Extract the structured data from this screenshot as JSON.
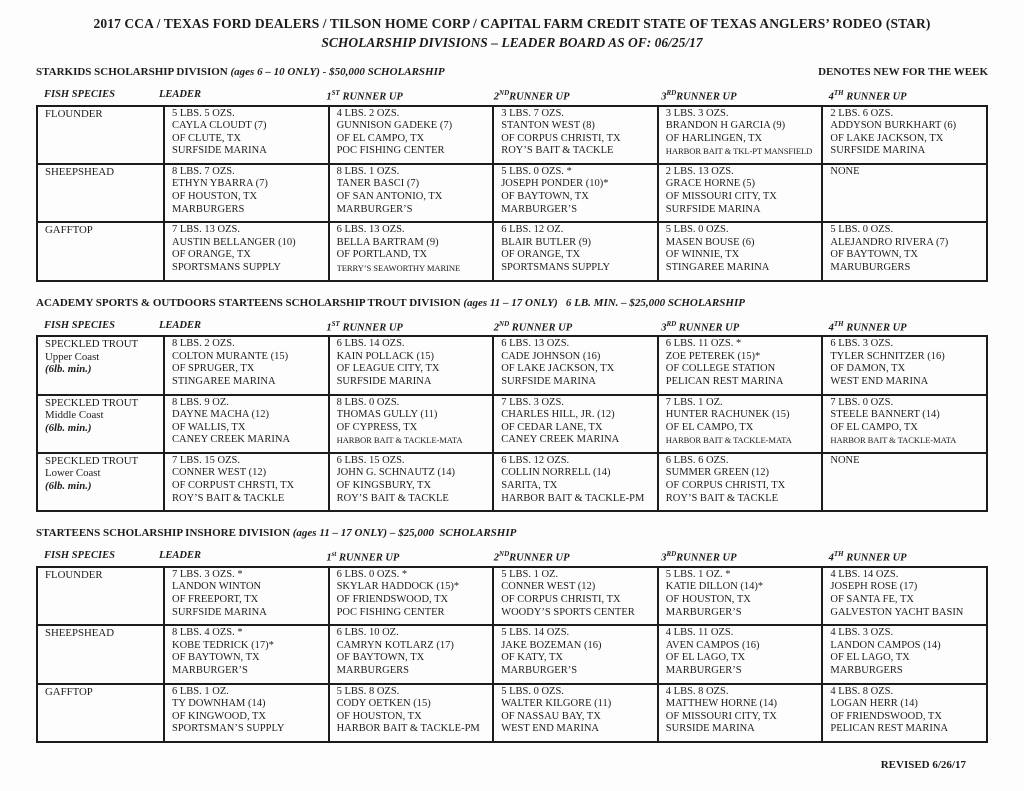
{
  "page": {
    "title_line1": "2017 CCA / TEXAS FORD DEALERS / TILSON HOME CORP / CAPITAL FARM CREDIT STATE OF TEXAS ANGLERS’ RODEO (STAR)",
    "title_line2": "SCHOLARSHIP DIVISIONS – LEADER BOARD AS OF: 06/25/17",
    "footer": "REVISED 6/26/17"
  },
  "sections": [
    {
      "heading": "STARKIDS SCHOLARSHIP DIVISION",
      "heading_note": "(ages 6 – 10 ONLY) - $50,000 SCHOLARSHIP",
      "right_note": "DENOTES NEW FOR THE WEEK",
      "columns": [
        "FISH SPECIES",
        "LEADER",
        [
          "1",
          "ST",
          " RUNNER UP"
        ],
        [
          "2",
          "ND",
          "RUNNER UP"
        ],
        [
          "3",
          "RD",
          "RUNNER UP"
        ],
        [
          "4",
          "TH",
          " RUNNER UP"
        ]
      ],
      "rows": [
        {
          "species": [
            "FLOUNDER"
          ],
          "cells": [
            [
              "5 LBS. 5 OZS.",
              "CAYLA CLOUDT (7)",
              "OF CLUTE, TX",
              "SURFSIDE MARINA"
            ],
            [
              "4 LBS. 2 OZS.",
              "GUNNISON GADEKE (7)",
              "OF EL CAMPO, TX",
              "POC FISHING CENTER"
            ],
            [
              "3 LBS. 7 OZS.",
              "STANTON WEST (8)",
              "OF CORPUS CHRISTI, TX",
              "ROY’S BAIT & TACKLE"
            ],
            [
              "3 LBS. 3 OZS.",
              "BRANDON H GARCIA (9)",
              "OF HARLINGEN, TX",
              "HARBOR BAIT & TKL-PT MANSFIELD"
            ],
            [
              "2 LBS. 6 OZS.",
              "ADDYSON BURKHART (6)",
              "OF LAKE JACKSON, TX",
              "SURFSIDE MARINA"
            ]
          ]
        },
        {
          "species": [
            "SHEEPSHEAD"
          ],
          "cells": [
            [
              "8 LBS. 7 OZS.",
              "ETHYN YBARRA (7)",
              "OF HOUSTON, TX",
              "MARBURGERS"
            ],
            [
              "8 LBS. 1 OZS.",
              "TANER BASCI (7)",
              "OF SAN ANTONIO, TX",
              "MARBURGER’S"
            ],
            [
              "5 LBS. 0 OZS. *",
              "JOSEPH PONDER (10)*",
              "OF BAYTOWN, TX",
              "MARBURGER’S"
            ],
            [
              "2 LBS. 13 OZS.",
              "GRACE HORNE (5)",
              "OF MISSOURI CITY, TX",
              "SURFSIDE MARINA"
            ],
            [
              "NONE"
            ]
          ]
        },
        {
          "species": [
            "GAFFTOP"
          ],
          "cells": [
            [
              "7 LBS. 13 OZS.",
              "AUSTIN BELLANGER (10)",
              "OF ORANGE, TX",
              "SPORTSMANS SUPPLY"
            ],
            [
              "6 LBS. 13 OZS.",
              "BELLA BARTRAM (9)",
              "OF PORTLAND, TX",
              "TERRY’S SEAWORTHY MARINE"
            ],
            [
              "6 LBS. 12 OZ.",
              "BLAIR BUTLER (9)",
              "OF ORANGE, TX",
              "SPORTSMANS SUPPLY"
            ],
            [
              "5 LBS. 0 OZS.",
              "MASEN BOUSE (6)",
              "OF WINNIE, TX",
              "STINGAREE MARINA"
            ],
            [
              "5 LBS. 0 OZS.",
              "ALEJANDRO RIVERA (7)",
              "OF BAYTOWN, TX",
              "MARUBURGERS"
            ]
          ]
        }
      ]
    },
    {
      "heading": "ACADEMY SPORTS & OUTDOORS STARTEENS SCHOLARSHIP TROUT DIVISION",
      "heading_note": "(ages 11 – 17 ONLY)   6 LB. MIN. – $25,000 SCHOLARSHIP",
      "right_note": "",
      "columns": [
        "FISH SPECIES",
        "LEADER",
        [
          "1",
          "ST",
          " RUNNER UP"
        ],
        [
          "2",
          "ND",
          " RUNNER UP"
        ],
        [
          "3",
          "RD",
          " RUNNER UP"
        ],
        [
          "4",
          "TH",
          " RUNNER UP"
        ]
      ],
      "rows": [
        {
          "species": [
            "SPECKLED TROUT",
            "Upper Coast",
            "(6lb. min.)"
          ],
          "cells": [
            [
              "8 LBS. 2 OZS.",
              "COLTON MURANTE (15)",
              "OF SPRUGER, TX",
              "STINGAREE MARINA"
            ],
            [
              "6 LBS. 14 OZS.",
              "KAIN POLLACK (15)",
              "OF LEAGUE CITY, TX",
              "SURFSIDE MARINA"
            ],
            [
              "6 LBS. 13 OZS.",
              "CADE JOHNSON (16)",
              "OF LAKE JACKSON, TX",
              "SURFSIDE MARINA"
            ],
            [
              "6 LBS. 11 OZS. *",
              "ZOE PETEREK (15)*",
              "OF COLLEGE STATION",
              "PELICAN REST MARINA"
            ],
            [
              "6 LBS. 3 OZS.",
              "TYLER SCHNITZER (16)",
              "OF DAMON, TX",
              "WEST END MARINA"
            ]
          ]
        },
        {
          "species": [
            "SPECKLED TROUT",
            "Middle Coast",
            "(6lb. min.)"
          ],
          "cells": [
            [
              "8 LBS. 9 OZ.",
              "DAYNE MACHA (12)",
              "OF WALLIS, TX",
              "CANEY CREEK MARINA"
            ],
            [
              "8 LBS. 0 OZS.",
              "THOMAS GULLY (11)",
              "OF CYPRESS, TX",
              "HARBOR BAIT & TACKLE-MATA"
            ],
            [
              "7 LBS. 3 OZS.",
              "CHARLES HILL, JR. (12)",
              "OF CEDAR LANE, TX",
              "CANEY CREEK MARINA"
            ],
            [
              "7 LBS. 1 OZ.",
              "HUNTER RACHUNEK (15)",
              "OF EL CAMPO, TX",
              "HARBOR BAIT & TACKLE-MATA"
            ],
            [
              "7 LBS. 0 OZS.",
              "STEELE BANNERT (14)",
              "OF EL CAMPO, TX",
              "HARBOR BAIT & TACKLE-MATA"
            ]
          ]
        },
        {
          "species": [
            "SPECKLED TROUT",
            "Lower Coast",
            "(6lb. min.)"
          ],
          "cells": [
            [
              "7 LBS. 15 OZS.",
              "CONNER WEST (12)",
              "OF CORPUST CHRSTI, TX",
              "ROY’S BAIT & TACKLE"
            ],
            [
              "6 LBS. 15 OZS.",
              "JOHN G. SCHNAUTZ (14)",
              "OF KINGSBURY, TX",
              "ROY’S BAIT & TACKLE"
            ],
            [
              "6 LBS. 12 OZS.",
              "COLLIN NORRELL (14)",
              "SARITA, TX",
              "HARBOR BAIT & TACKLE-PM"
            ],
            [
              "6 LBS. 6 OZS.",
              "SUMMER GREEN (12)",
              "OF CORPUS CHRISTI, TX",
              "ROY’S BAIT & TACKLE"
            ],
            [
              "NONE"
            ]
          ]
        }
      ]
    },
    {
      "heading": "STARTEENS SCHOLARSHIP INSHORE DIVISION",
      "heading_note": "(ages 11 – 17 ONLY) – $25,000  SCHOLARSHIP",
      "right_note": "",
      "columns": [
        "FISH SPECIES",
        "LEADER",
        [
          "1",
          "st",
          " RUNNER UP"
        ],
        [
          "2",
          "ND",
          "RUNNER UP"
        ],
        [
          "3",
          "RD",
          "RUNNER UP"
        ],
        [
          "4",
          "TH",
          " RUNNER UP"
        ]
      ],
      "rows": [
        {
          "species": [
            "FLOUNDER"
          ],
          "cells": [
            [
              "7 LBS. 3 OZS. *",
              "LANDON WINTON",
              "OF FREEPORT, TX",
              "SURFSIDE MARINA"
            ],
            [
              "6 LBS. 0 OZS. *",
              "SKYLAR HADDOCK (15)*",
              "OF FRIENDSWOOD, TX",
              "POC FISHING CENTER"
            ],
            [
              "5 LBS. 1 OZ.",
              "CONNER WEST (12)",
              "OF CORPUS CHRISTI, TX",
              "WOODY’S SPORTS CENTER"
            ],
            [
              "5 LBS. 1 OZ. *",
              "KATIE DILLON (14)*",
              "OF HOUSTON, TX",
              "MARBURGER’S"
            ],
            [
              "4 LBS. 14 OZS.",
              "JOSEPH ROSE (17)",
              "OF SANTA FE, TX",
              "GALVESTON YACHT BASIN"
            ]
          ]
        },
        {
          "species": [
            "SHEEPSHEAD"
          ],
          "cells": [
            [
              "8 LBS. 4 OZS. *",
              "KOBE TEDRICK (17)*",
              "OF BAYTOWN, TX",
              "MARBURGER’S"
            ],
            [
              "6 LBS. 10 OZ.",
              "CAMRYN KOTLARZ (17)",
              "OF BAYTOWN, TX",
              "MARBURGERS"
            ],
            [
              "5 LBS. 14 OZS.",
              "JAKE BOZEMAN (16)",
              "OF KATY, TX",
              "MARBURGER’S"
            ],
            [
              "4 LBS. 11 OZS.",
              "AVEN CAMPOS (16)",
              "OF EL LAGO, TX",
              "MARBURGER’S"
            ],
            [
              "4 LBS. 3 OZS.",
              "LANDON CAMPOS (14)",
              "OF EL LAGO, TX",
              "MARBURGERS"
            ]
          ]
        },
        {
          "species": [
            "GAFFTOP"
          ],
          "cells": [
            [
              "6 LBS. 1 OZ.",
              "TY DOWNHAM (14)",
              "OF KINGWOOD, TX",
              "SPORTSMAN’S SUPPLY"
            ],
            [
              "5 LBS. 8 OZS.",
              "CODY OETKEN (15)",
              "OF HOUSTON, TX",
              "HARBOR BAIT & TACKLE-PM"
            ],
            [
              "5 LBS. 0 OZS.",
              "WALTER KILGORE (11)",
              "OF NASSAU BAY, TX",
              "WEST END MARINA"
            ],
            [
              "4 LBS. 8 OZS.",
              "MATTHEW HORNE (14)",
              "OF MISSOURI CITY, TX",
              "SURSIDE MARINA"
            ],
            [
              "4 LBS. 8 OZS.",
              "LOGAN HERR (14)",
              "OF FRIENDSWOOD, TX",
              "PELICAN REST MARINA"
            ]
          ]
        }
      ]
    }
  ]
}
